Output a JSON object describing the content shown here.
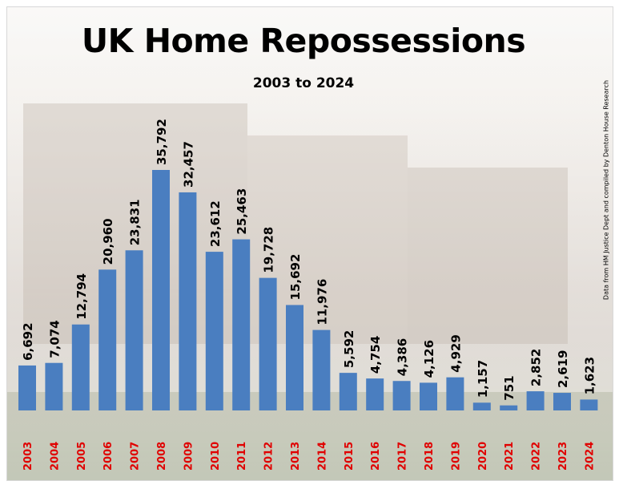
{
  "title": "UK Home Repossessions",
  "subtitle": "2003 to 2024",
  "credit": "Data from HM Justice Dept and compiled by Denton House Research",
  "colors": {
    "bar": "#4a7ec0",
    "year_label": "#e00000",
    "background": "#e4dfd9"
  },
  "chart_data": {
    "type": "bar",
    "categories": [
      "2003",
      "2004",
      "2005",
      "2006",
      "2007",
      "2008",
      "2009",
      "2010",
      "2011",
      "2012",
      "2013",
      "2014",
      "2015",
      "2016",
      "2017",
      "2018",
      "2019",
      "2020",
      "2021",
      "2022",
      "2023",
      "2024"
    ],
    "values": [
      6692,
      7074,
      12794,
      20960,
      23831,
      35792,
      32457,
      23612,
      25463,
      19728,
      15692,
      11976,
      5592,
      4754,
      4386,
      4126,
      4929,
      1157,
      751,
      2852,
      2619,
      1623
    ],
    "value_labels": [
      "6,692",
      "7,074",
      "12,794",
      "20,960",
      "23,831",
      "35,792",
      "32,457",
      "23,612",
      "25,463",
      "19,728",
      "15,692",
      "11,976",
      "5,592",
      "4,754",
      "4,386",
      "4,126",
      "4,929",
      "1,157",
      "751",
      "2,852",
      "2,619",
      "1,623"
    ],
    "title": "UK Home Repossessions",
    "subtitle": "2003 to 2024",
    "xlabel": "",
    "ylabel": "",
    "ylim": [
      0,
      36000
    ],
    "grid": false,
    "legend": "none"
  }
}
